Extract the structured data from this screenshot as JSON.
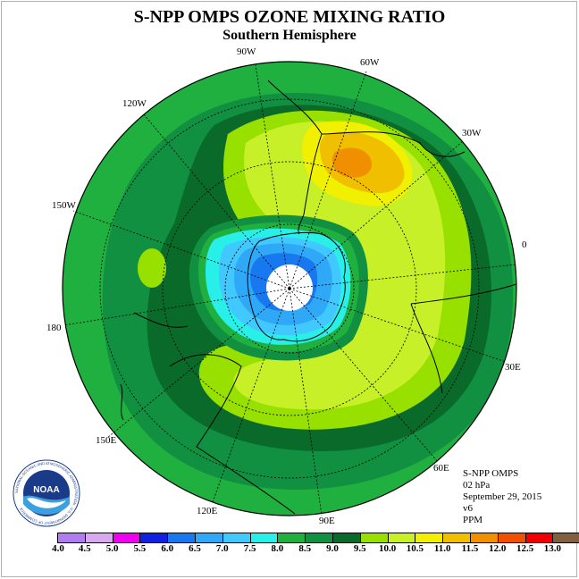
{
  "header": {
    "title": "S-NPP OMPS OZONE MIXING RATIO",
    "subtitle": "Southern Hemisphere"
  },
  "longitude_labels": [
    "90W",
    "60W",
    "30W",
    "0",
    "30E",
    "60E",
    "90E",
    "120E",
    "150E",
    "180",
    "150W",
    "120W"
  ],
  "info": {
    "instrument": "S-NPP OMPS",
    "pressure": "02 hPa",
    "date": "September 29, 2015",
    "version": "v6",
    "units": "PPM"
  },
  "logo": {
    "text": "NOAA",
    "ring_text": "NATIONAL OCEANIC AND ATMOSPHERIC ADMINISTRATION · U.S. DEPARTMENT OF COMMERCE"
  },
  "colorbar": {
    "ticks": [
      "4.0",
      "4.5",
      "5.0",
      "5.5",
      "6.0",
      "6.5",
      "7.0",
      "7.5",
      "8.0",
      "8.5",
      "9.0",
      "9.5",
      "10.0",
      "10.5",
      "11.0",
      "11.5",
      "12.0",
      "12.5",
      "13.0"
    ],
    "colors": [
      "#b07cf0",
      "#d8a8f0",
      "#f000f0",
      "#1020e0",
      "#1878f0",
      "#30a8f8",
      "#40c8ff",
      "#28f0e8",
      "#20b040",
      "#109040",
      "#0a6a2a",
      "#98e000",
      "#c8f028",
      "#f0f000",
      "#f0c000",
      "#f09000",
      "#f05000",
      "#f00000",
      "#806040"
    ]
  }
}
